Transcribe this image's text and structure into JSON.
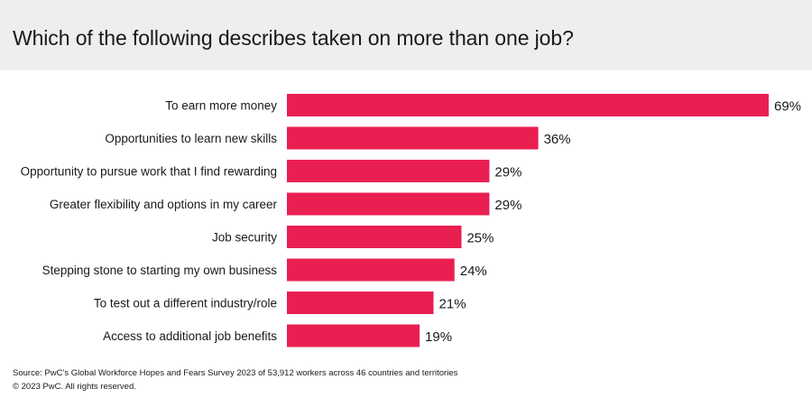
{
  "title": "Which of the following describes taken on more than one job?",
  "chart_data": {
    "type": "bar",
    "orientation": "horizontal",
    "categories": [
      "To earn more money",
      "Opportunities to learn new skills",
      "Opportunity to pursue work that I find rewarding",
      "Greater flexibility and options in my career",
      "Job security",
      "Stepping stone to starting my own business",
      "To test out a different industry/role",
      "Access to additional job benefits"
    ],
    "values": [
      69,
      36,
      29,
      29,
      25,
      24,
      21,
      19
    ],
    "value_labels": [
      "69%",
      "36%",
      "29%",
      "29%",
      "25%",
      "24%",
      "21%",
      "19%"
    ],
    "title": "Which of the following describes taken on more than one job?",
    "xlabel": "",
    "ylabel": "",
    "xlim": [
      0,
      69
    ],
    "grid": false,
    "legend": "none",
    "bar_color": "#e91f52"
  },
  "footer": {
    "source": "Source: PwC’s Global Workforce Hopes and Fears Survey 2023 of 53,912 workers across 46 countries and territories",
    "copyright": "© 2023 PwC. All rights reserved."
  }
}
